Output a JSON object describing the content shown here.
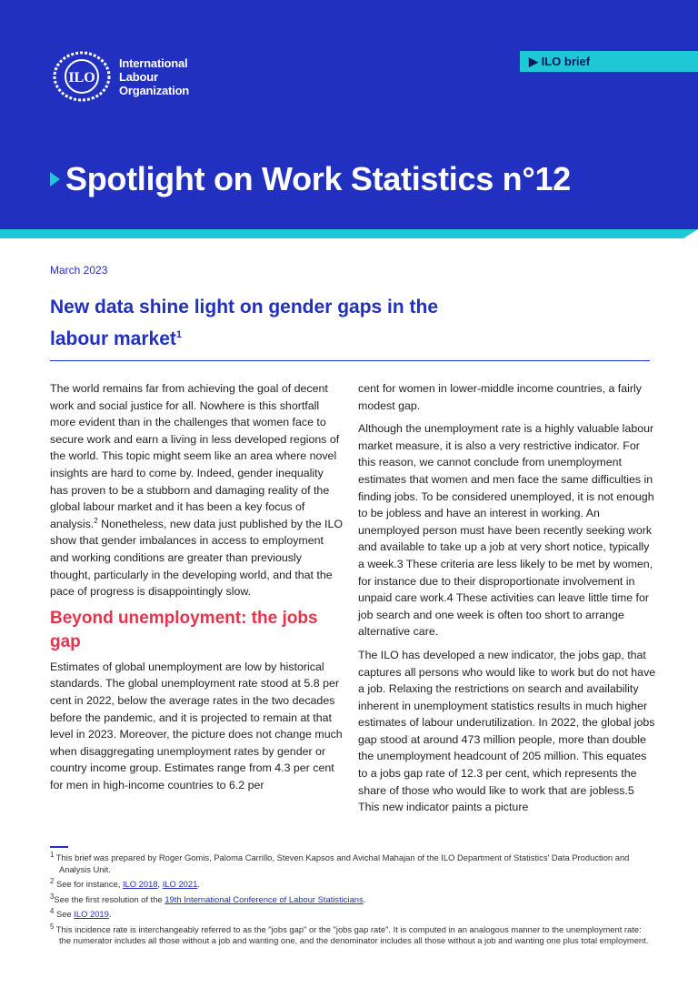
{
  "header": {
    "org_name": [
      "International",
      "Labour",
      "Organization"
    ],
    "logo_text": "ILO",
    "brief_tag": "ILO brief",
    "series_title": "Spotlight on Work Statistics n°12",
    "colors": {
      "brand_blue": "#2230BF",
      "accent_cyan": "#1ec8d4",
      "heading_red": "#e8344a"
    }
  },
  "date": "March 2023",
  "headline": {
    "text": "New data shine light on gender gaps in the labour market",
    "footnote_ref": "1"
  },
  "left_column": {
    "p1": "The world remains far from achieving the goal of decent work and social justice for all. Nowhere is this shortfall more evident than in the challenges that women face to secure work and earn a living in less developed regions of the world. This topic might seem like an area where novel insights are hard to come by. Indeed, gender inequality has proven to be a stubborn and damaging reality of the global labour market and it has been a key focus of analysis.",
    "p1_ref": "2",
    "p1_cont": " Nonetheless, new data just published by the ILO show that gender imbalances in access to employment and working conditions are greater than previously thought, particularly in the developing world, and that the pace of progress is disappointingly slow.",
    "heading": "Beyond unemployment: the jobs gap",
    "p2": "Estimates of global unemployment are low by historical standards. The global unemployment rate stood at 5.8 per cent in 2022, below the average rates in the two decades before the pandemic, and it is projected to remain at that level in 2023. Moreover, the picture does not change much when disaggregating unemployment rates by gender or country income group. Estimates range from 4.3 per cent for men in high-income countries to 6.2 per"
  },
  "right_column": {
    "p1": "cent for women in lower-middle income countries, a fairly modest gap.",
    "p2": "Although the unemployment rate is a highly valuable labour market measure, it is also a very restrictive indicator. For this reason, we cannot conclude from unemployment estimates that women and men face the same difficulties in finding jobs. To be considered unemployed, it is not enough to be jobless and have an interest in working. An unemployed person must have been recently seeking work and available to take up a job at very short notice, typically a week.3 These criteria are less likely to be met by women, for instance due to their disproportionate involvement in unpaid care work.4 These activities can leave little time for job search and one week is often too short to arrange alternative care.",
    "p3": "The ILO has developed a new indicator, the jobs gap, that captures all persons who would like to work but do not have a job. Relaxing the restrictions on search and availability inherent in unemployment statistics results in much higher estimates of labour underutilization. In 2022, the global jobs gap stood at around 473 million people, more than double the unemployment headcount of 205 million. This equates to a jobs gap rate of 12.3 per cent, which represents the share of those who would like to work that are jobless.5 This new indicator paints a picture"
  },
  "footnotes": [
    {
      "num": "1",
      "text": "This brief was prepared by Roger Gomis, Paloma Carrillo, Steven Kapsos and Avichal Mahajan of the ILO Department of Statistics' Data Production and Analysis Unit."
    },
    {
      "num": "2",
      "text": "See for instance, ",
      "link1": "ILO 2018",
      "sep": ", ",
      "link2": "ILO 2021",
      "end": "."
    },
    {
      "num": "3",
      "text": "See the first resolution of the ",
      "link1": "19th International Conference of Labour Statisticians",
      "end": "."
    },
    {
      "num": "4",
      "text": "See ",
      "link1": "ILO 2019",
      "end": "."
    },
    {
      "num": "5",
      "text": "This incidence rate is interchangeably referred to as the \"jobs gap\" or the \"jobs gap rate\". It is computed in an analogous manner to the unemployment rate: the numerator includes all those without a job and wanting one, and the denominator includes all those without a job and wanting one plus total employment."
    }
  ]
}
